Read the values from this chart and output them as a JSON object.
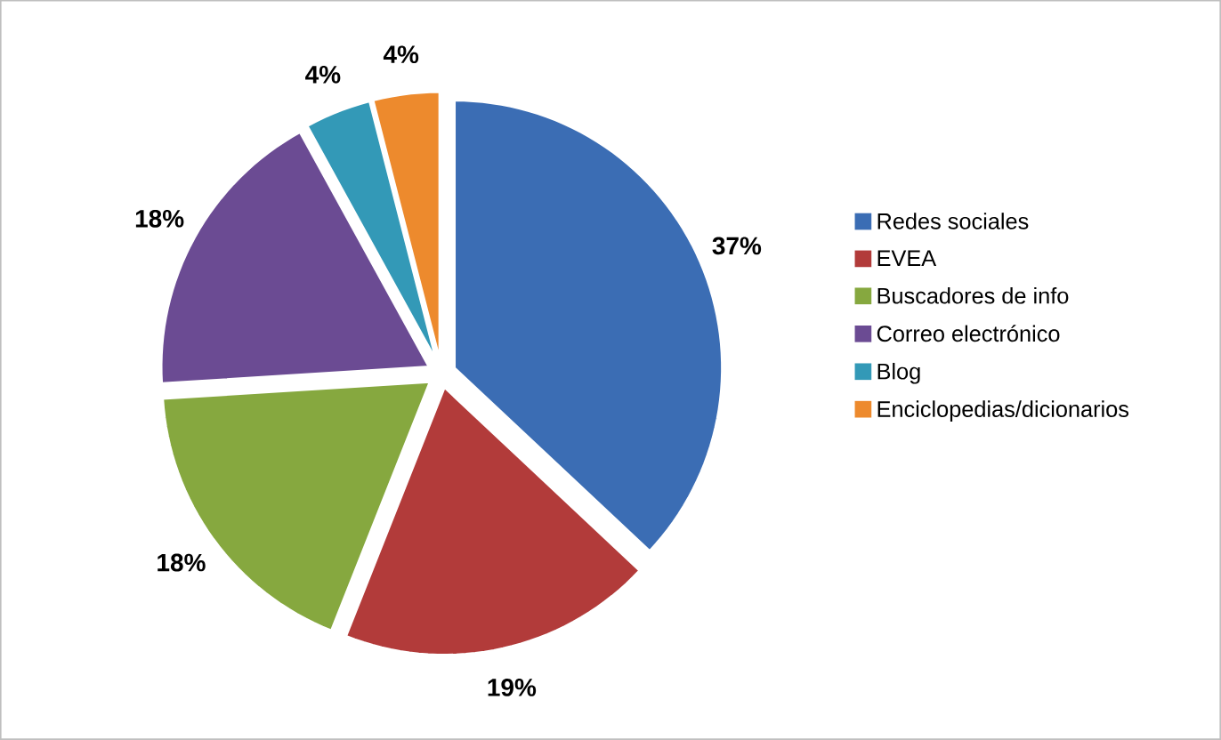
{
  "chart_data": {
    "type": "pie",
    "categories": [
      "Redes sociales",
      "EVEA",
      "Buscadores de info",
      "Correo electrónico",
      "Blog",
      "Enciclopedias/dicionarios"
    ],
    "values": [
      37,
      19,
      18,
      18,
      4,
      4
    ],
    "value_labels": [
      "37%",
      "19%",
      "18%",
      "18%",
      "4%",
      "4%"
    ],
    "colors": [
      "#3b6db4",
      "#b23b3a",
      "#86a83f",
      "#6b4b93",
      "#3399b7",
      "#ed8a2d"
    ],
    "legend": "right"
  }
}
